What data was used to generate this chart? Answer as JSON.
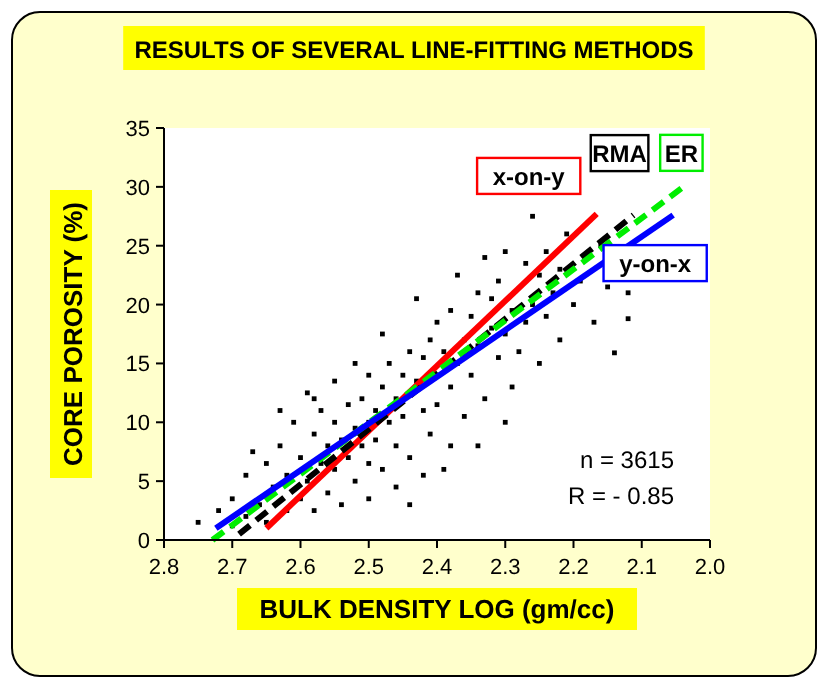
{
  "chart_data": {
    "type": "scatter",
    "title": "RESULTS OF SEVERAL LINE-FITTING METHODS",
    "xlabel": "BULK DENSITY LOG (gm/cc)",
    "ylabel": "CORE POROSITY (%)",
    "xlim": [
      2.8,
      2.0
    ],
    "xticks": [
      2.8,
      2.7,
      2.6,
      2.5,
      2.4,
      2.3,
      2.2,
      2.1,
      {
        "value": 2.0,
        "label": "2.0"
      }
    ],
    "ylim": [
      0,
      35
    ],
    "yticks": [
      0,
      5,
      10,
      15,
      20,
      25,
      30,
      35
    ],
    "grid": false,
    "series": [
      {
        "marker": "square",
        "color": "#000000",
        "x": [
          2.75,
          2.72,
          2.7,
          2.7,
          2.68,
          2.68,
          2.67,
          2.66,
          2.65,
          2.65,
          2.64,
          2.63,
          2.62,
          2.62,
          2.61,
          2.6,
          2.6,
          2.59,
          2.59,
          2.58,
          2.58,
          2.57,
          2.57,
          2.56,
          2.56,
          2.55,
          2.55,
          2.55,
          2.54,
          2.54,
          2.53,
          2.53,
          2.52,
          2.52,
          2.52,
          2.51,
          2.51,
          2.5,
          2.5,
          2.5,
          2.5,
          2.49,
          2.49,
          2.48,
          2.48,
          2.48,
          2.47,
          2.47,
          2.46,
          2.46,
          2.46,
          2.45,
          2.45,
          2.44,
          2.44,
          2.43,
          2.43,
          2.42,
          2.42,
          2.41,
          2.41,
          2.4,
          2.4,
          2.4,
          2.39,
          2.39,
          2.38,
          2.38,
          2.37,
          2.37,
          2.36,
          2.36,
          2.35,
          2.35,
          2.34,
          2.34,
          2.33,
          2.33,
          2.32,
          2.32,
          2.31,
          2.31,
          2.3,
          2.3,
          2.29,
          2.29,
          2.28,
          2.27,
          2.27,
          2.26,
          2.26,
          2.25,
          2.25,
          2.24,
          2.24,
          2.23,
          2.22,
          2.22,
          2.21,
          2.2,
          2.19,
          2.17,
          2.16,
          2.15,
          2.14,
          2.12,
          2.12,
          2.42,
          2.44,
          2.38,
          2.58,
          2.63,
          2.34,
          2.3
        ],
        "values": [
          1.5,
          2.5,
          1.2,
          3.5,
          2,
          5.5,
          7.5,
          3,
          1.5,
          6.5,
          4.5,
          8,
          2.5,
          5.5,
          10,
          3.5,
          7,
          12.5,
          5,
          9,
          2.5,
          6.5,
          11,
          4,
          8,
          13.5,
          10,
          6,
          3,
          8.5,
          11.5,
          7,
          15,
          9.5,
          5,
          12,
          8,
          10,
          14,
          6.5,
          3.5,
          11,
          8.5,
          13,
          17.5,
          6,
          10,
          15,
          12,
          8,
          4.5,
          14,
          10.5,
          16,
          7,
          20.5,
          13.5,
          11,
          15.5,
          17,
          9,
          14,
          18.5,
          11.5,
          16,
          6,
          19.5,
          13,
          15,
          22.5,
          17,
          10.5,
          19,
          14,
          21,
          16.5,
          24,
          12,
          18,
          20.5,
          15.5,
          22,
          17.5,
          24.5,
          19.5,
          13,
          16,
          23.5,
          18.5,
          27.5,
          20,
          15,
          22.5,
          19,
          24.5,
          21,
          17,
          23,
          26,
          20,
          22,
          18.5,
          25,
          21.5,
          15.9,
          21,
          18.8,
          5.5,
          3,
          8,
          12,
          11,
          8,
          10
        ]
      },
      {
        "type": "line",
        "name": "x-on-y",
        "color": "#ff0000",
        "line_style": "solid",
        "marker": "none",
        "x": [
          2.65,
          2.166
        ],
        "values": [
          1,
          27.7
        ]
      },
      {
        "type": "line",
        "name": "RMA",
        "color": "#000000",
        "line_style": "dashed",
        "marker": "none",
        "x": [
          2.69,
          2.112
        ],
        "values": [
          0.5,
          27.6
        ]
      },
      {
        "type": "line",
        "name": "ER",
        "color": "#00ee00",
        "line_style": "dashed",
        "marker": "none",
        "x": [
          2.729,
          2.039
        ],
        "values": [
          0,
          30
        ]
      },
      {
        "type": "line",
        "name": "y-on-x",
        "color": "#0000ff",
        "line_style": "solid",
        "marker": "none",
        "x": [
          2.724,
          2.054
        ],
        "values": [
          1,
          27.6
        ]
      }
    ],
    "annotations": [
      "n = 3615",
      "R = - 0.85"
    ]
  }
}
